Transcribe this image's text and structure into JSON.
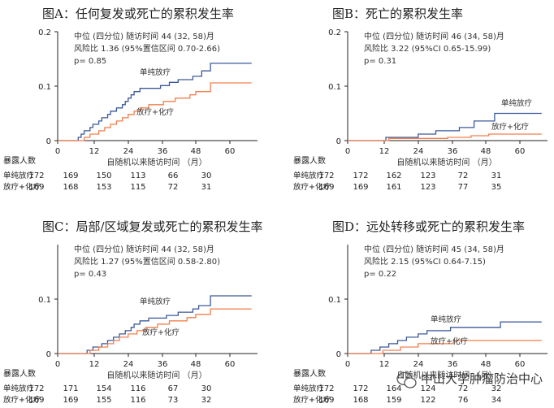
{
  "colors": {
    "single_rt": "#3b5998",
    "rt_ct": "#f07f4d",
    "axis": "#222222"
  },
  "watermark": {
    "text": "中山大学肿瘤防治中心",
    "icon": "wechat-icon"
  },
  "chart_data": [
    {
      "type": "line",
      "step": true,
      "title": "图A：任何复发或死亡的累积发生率",
      "stats": [
        "中位 (四分位) 随访时间 44 (32, 58)月",
        "风险比 1.36 (95%置信区间 0.70-2.66)",
        "p= 0.85"
      ],
      "xlabel": "自随机以来随访时间 （月）",
      "xticks": [
        "0",
        "12",
        "24",
        "36",
        "48",
        "60"
      ],
      "yticks": [
        "0",
        "0.1",
        "0.2"
      ],
      "xlim": [
        0,
        68
      ],
      "ylim": [
        0,
        0.2
      ],
      "series": [
        {
          "name": "单纯放疗",
          "color": "#3b5998",
          "points": [
            [
              0,
              0
            ],
            [
              6,
              0
            ],
            [
              7,
              0.006
            ],
            [
              8,
              0.012
            ],
            [
              9,
              0.018
            ],
            [
              11,
              0.024
            ],
            [
              12,
              0.03
            ],
            [
              14,
              0.036
            ],
            [
              15,
              0.042
            ],
            [
              17,
              0.048
            ],
            [
              18,
              0.054
            ],
            [
              20,
              0.06
            ],
            [
              22,
              0.066
            ],
            [
              23,
              0.072
            ],
            [
              24,
              0.078
            ],
            [
              25,
              0.084
            ],
            [
              26,
              0.09
            ],
            [
              28,
              0.096
            ],
            [
              35,
              0.101
            ],
            [
              38,
              0.107
            ],
            [
              41,
              0.112
            ],
            [
              46,
              0.118
            ],
            [
              49,
              0.128
            ],
            [
              52,
              0.142
            ],
            [
              66,
              0.142
            ]
          ]
        },
        {
          "name": "放疗+化疗",
          "color": "#f07f4d",
          "points": [
            [
              0,
              0
            ],
            [
              7,
              0
            ],
            [
              9,
              0.006
            ],
            [
              11,
              0.012
            ],
            [
              14,
              0.018
            ],
            [
              16,
              0.024
            ],
            [
              18,
              0.03
            ],
            [
              20,
              0.036
            ],
            [
              22,
              0.042
            ],
            [
              24,
              0.048
            ],
            [
              26,
              0.054
            ],
            [
              28,
              0.06
            ],
            [
              31,
              0.066
            ],
            [
              36,
              0.072
            ],
            [
              40,
              0.078
            ],
            [
              45,
              0.084
            ],
            [
              47,
              0.09
            ],
            [
              52,
              0.106
            ],
            [
              66,
              0.106
            ]
          ]
        }
      ],
      "at_risk": {
        "header": "暴露人数",
        "rows": [
          {
            "label": "单纯放疗",
            "values": [
              "172",
              "169",
              "150",
              "113",
              "66",
              "30"
            ]
          },
          {
            "label": "放疗+化疗",
            "values": [
              "169",
              "168",
              "153",
              "115",
              "72",
              "31"
            ]
          }
        ]
      }
    },
    {
      "type": "line",
      "step": true,
      "title": "图B：死亡的累积发生率",
      "stats": [
        "中位 (四分位) 随访时间 46 (34, 58)月",
        "风险比 3.22 (95%CI 0.65-15.99)",
        "p= 0.31"
      ],
      "xlabel": "自随机以来随访时间 （月）",
      "xticks": [
        "0",
        "12",
        "24",
        "36",
        "48",
        "60"
      ],
      "yticks": [
        "0",
        "0.1",
        "0.2"
      ],
      "xlim": [
        0,
        68
      ],
      "ylim": [
        0,
        0.2
      ],
      "series": [
        {
          "name": "单纯放疗",
          "color": "#3b5998",
          "points": [
            [
              0,
              0
            ],
            [
              12,
              0
            ],
            [
              13,
              0.006
            ],
            [
              24,
              0.012
            ],
            [
              30,
              0.018
            ],
            [
              38,
              0.024
            ],
            [
              43,
              0.036
            ],
            [
              50,
              0.05
            ],
            [
              66,
              0.05
            ]
          ]
        },
        {
          "name": "放疗+化疗",
          "color": "#f07f4d",
          "points": [
            [
              0,
              0
            ],
            [
              13,
              0
            ],
            [
              14,
              0.004
            ],
            [
              34,
              0.006
            ],
            [
              42,
              0.009
            ],
            [
              48,
              0.012
            ],
            [
              66,
              0.012
            ]
          ]
        }
      ],
      "at_risk": {
        "header": "暴露人数",
        "rows": [
          {
            "label": "单纯放疗",
            "values": [
              "172",
              "172",
              "162",
              "123",
              "72",
              "31"
            ]
          },
          {
            "label": "放疗+化疗",
            "values": [
              "169",
              "169",
              "161",
              "123",
              "77",
              "35"
            ]
          }
        ]
      }
    },
    {
      "type": "line",
      "step": true,
      "title": "图C：局部/区域复发或死亡的累积发生率",
      "stats": [
        "中位 (四分位) 随访时间 44 (32, 58)月",
        "风险比 1.27 (95%置信区间 0.58-2.80)",
        "p= 0.43"
      ],
      "xlabel": "自随机以来随访时间 （月）",
      "xticks": [
        "0",
        "12",
        "24",
        "36",
        "48",
        "60"
      ],
      "yticks": [
        "0",
        "0.1"
      ],
      "xlim": [
        0,
        68
      ],
      "ylim": [
        0,
        0.2
      ],
      "series": [
        {
          "name": "单纯放疗",
          "color": "#3b5998",
          "points": [
            [
              0,
              0
            ],
            [
              9,
              0
            ],
            [
              10,
              0.006
            ],
            [
              12,
              0.012
            ],
            [
              15,
              0.018
            ],
            [
              17,
              0.024
            ],
            [
              19,
              0.03
            ],
            [
              21,
              0.036
            ],
            [
              23,
              0.042
            ],
            [
              25,
              0.048
            ],
            [
              26,
              0.054
            ],
            [
              28,
              0.06
            ],
            [
              31,
              0.065
            ],
            [
              37,
              0.07
            ],
            [
              41,
              0.076
            ],
            [
              46,
              0.082
            ],
            [
              48,
              0.088
            ],
            [
              52,
              0.106
            ],
            [
              66,
              0.106
            ]
          ]
        },
        {
          "name": "放疗+化疗",
          "color": "#f07f4d",
          "points": [
            [
              0,
              0
            ],
            [
              10,
              0
            ],
            [
              11,
              0.006
            ],
            [
              14,
              0.012
            ],
            [
              17,
              0.018
            ],
            [
              19,
              0.024
            ],
            [
              21,
              0.03
            ],
            [
              24,
              0.036
            ],
            [
              27,
              0.042
            ],
            [
              30,
              0.048
            ],
            [
              34,
              0.054
            ],
            [
              38,
              0.06
            ],
            [
              44,
              0.066
            ],
            [
              47,
              0.072
            ],
            [
              52,
              0.082
            ],
            [
              66,
              0.082
            ]
          ]
        }
      ],
      "at_risk": {
        "header": "暴露人数",
        "rows": [
          {
            "label": "单纯放疗",
            "values": [
              "172",
              "171",
              "154",
              "116",
              "67",
              "30"
            ]
          },
          {
            "label": "放疗+化疗",
            "values": [
              "169",
              "169",
              "155",
              "116",
              "73",
              "32"
            ]
          }
        ]
      }
    },
    {
      "type": "line",
      "step": true,
      "title": "图D：远处转移或死亡的累积发生率",
      "stats": [
        "中位 (四分位) 随访时间 45 (34, 58)月",
        "风险比 2.15 (95%CI 0.64-7.15)",
        "p= 0.22"
      ],
      "xlabel": "自随机以来随访时间 （月）",
      "xticks": [
        "0",
        "12",
        "24",
        "36",
        "48",
        "60"
      ],
      "yticks": [
        "0",
        "0.1"
      ],
      "xlim": [
        0,
        68
      ],
      "ylim": [
        0,
        0.2
      ],
      "series": [
        {
          "name": "单纯放疗",
          "color": "#3b5998",
          "points": [
            [
              0,
              0
            ],
            [
              6,
              0
            ],
            [
              8,
              0.006
            ],
            [
              11,
              0.012
            ],
            [
              14,
              0.018
            ],
            [
              17,
              0.024
            ],
            [
              20,
              0.03
            ],
            [
              24,
              0.036
            ],
            [
              27,
              0.042
            ],
            [
              35,
              0.048
            ],
            [
              52,
              0.058
            ],
            [
              66,
              0.058
            ]
          ]
        },
        {
          "name": "放疗+化疗",
          "color": "#f07f4d",
          "points": [
            [
              0,
              0
            ],
            [
              9,
              0
            ],
            [
              12,
              0.006
            ],
            [
              18,
              0.012
            ],
            [
              24,
              0.018
            ],
            [
              36,
              0.024
            ],
            [
              66,
              0.024
            ]
          ]
        }
      ],
      "at_risk": {
        "header": "暴露人数",
        "rows": [
          {
            "label": "单纯放疗",
            "values": [
              "172",
              "172",
              "164",
              "124",
              "72",
              "32"
            ]
          },
          {
            "label": "放疗+化疗",
            "values": [
              "169",
              "168",
              "159",
              "122",
              "76",
              "34"
            ]
          }
        ]
      }
    }
  ]
}
